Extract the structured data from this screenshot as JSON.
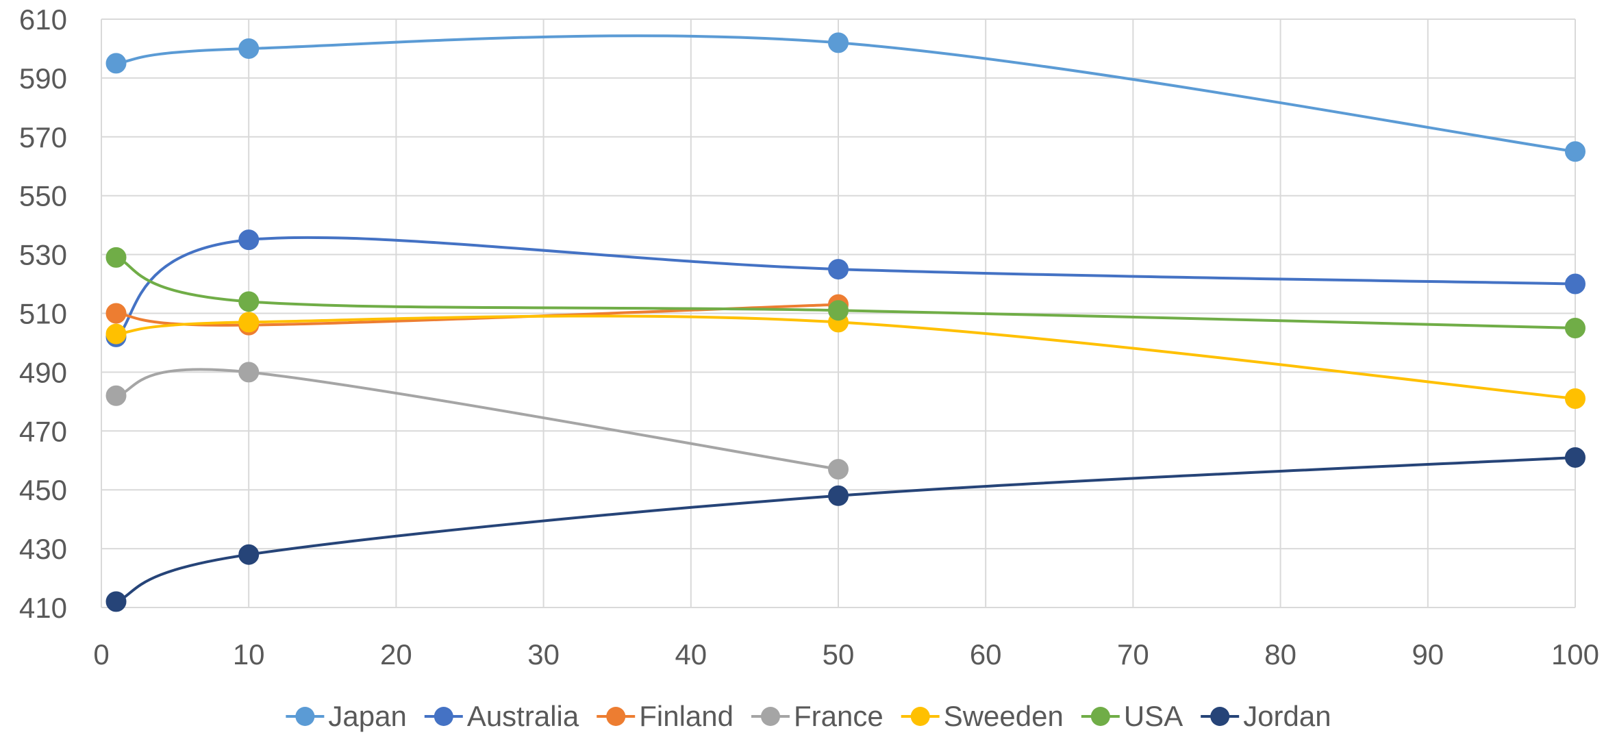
{
  "chart_data": {
    "type": "line",
    "title": "",
    "xlabel": "",
    "ylabel": "",
    "xlim": [
      0,
      100
    ],
    "ylim": [
      410,
      610
    ],
    "x_ticks": [
      0,
      10,
      20,
      30,
      40,
      50,
      60,
      70,
      80,
      90,
      100
    ],
    "y_ticks": [
      410,
      430,
      450,
      470,
      490,
      510,
      530,
      550,
      570,
      590,
      610
    ],
    "grid": true,
    "smooth": true,
    "legend_position": "bottom",
    "series": [
      {
        "name": "Japan",
        "color": "#5B9BD5",
        "points": [
          [
            1,
            595
          ],
          [
            10,
            600
          ],
          [
            50,
            602
          ],
          [
            100,
            565
          ]
        ]
      },
      {
        "name": "Australia",
        "color": "#4472C4",
        "points": [
          [
            1,
            502
          ],
          [
            10,
            535
          ],
          [
            50,
            525
          ],
          [
            100,
            520
          ]
        ]
      },
      {
        "name": "Finland",
        "color": "#ED7D31",
        "points": [
          [
            1,
            510
          ],
          [
            10,
            506
          ],
          [
            50,
            513
          ]
        ]
      },
      {
        "name": "France",
        "color": "#A5A5A5",
        "points": [
          [
            1,
            482
          ],
          [
            10,
            490
          ],
          [
            50,
            457
          ]
        ]
      },
      {
        "name": "Sweeden",
        "color": "#FFC000",
        "points": [
          [
            1,
            503
          ],
          [
            10,
            507
          ],
          [
            50,
            507
          ],
          [
            100,
            481
          ]
        ]
      },
      {
        "name": "USA",
        "color": "#70AD47",
        "points": [
          [
            1,
            529
          ],
          [
            10,
            514
          ],
          [
            50,
            511
          ],
          [
            100,
            505
          ]
        ]
      },
      {
        "name": "Jordan",
        "color": "#264478",
        "points": [
          [
            1,
            412
          ],
          [
            10,
            428
          ],
          [
            50,
            448
          ],
          [
            100,
            461
          ]
        ]
      }
    ]
  }
}
